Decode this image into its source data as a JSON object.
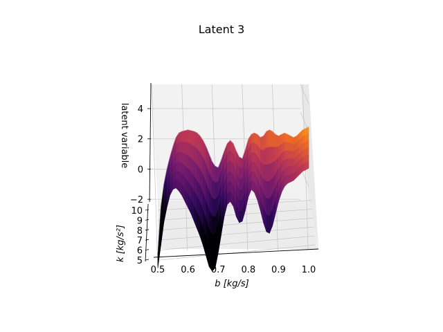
{
  "chart_data": {
    "type": "surface",
    "title": "Latent 3",
    "xlabel": "b [kg/s]",
    "ylabel": "k [kg/s²]",
    "zlabel": "latent variable",
    "xlim": [
      0.5,
      1.0
    ],
    "ylim": [
      5,
      10
    ],
    "zlim": [
      -3,
      5
    ],
    "x_ticks": [
      "0.5",
      "0.6",
      "0.7",
      "0.8",
      "0.9",
      "1.0"
    ],
    "y_ticks": [
      "5",
      "6",
      "7",
      "8",
      "9",
      "10"
    ],
    "z_ticks": [
      "−2",
      "0",
      "2",
      "4"
    ],
    "colormap": "inferno",
    "grid": true,
    "x": [
      0.5,
      0.51,
      0.52,
      0.53,
      0.54,
      0.55,
      0.56,
      0.57,
      0.58,
      0.59,
      0.6,
      0.61,
      0.62,
      0.63,
      0.64,
      0.65,
      0.66,
      0.67,
      0.68,
      0.69,
      0.7,
      0.71,
      0.72,
      0.73,
      0.74,
      0.75,
      0.76,
      0.77,
      0.78,
      0.79,
      0.8,
      0.81,
      0.82,
      0.83,
      0.84,
      0.85,
      0.86,
      0.87,
      0.88,
      0.89,
      0.9,
      0.91,
      0.92,
      0.93,
      0.94,
      0.95,
      0.96,
      0.97,
      0.98,
      0.99,
      1.0
    ],
    "z_max_over_k": [
      -5.5,
      -2.5,
      -1.0,
      0.0,
      0.8,
      1.5,
      2.1,
      2.4,
      2.5,
      2.55,
      2.6,
      2.55,
      2.5,
      2.4,
      2.2,
      1.9,
      1.5,
      1.0,
      0.5,
      0.2,
      0.1,
      0.6,
      1.2,
      1.7,
      1.9,
      1.7,
      1.2,
      0.8,
      0.7,
      1.3,
      2.0,
      2.3,
      2.4,
      2.3,
      2.1,
      2.2,
      2.5,
      2.6,
      2.5,
      2.3,
      2.2,
      2.3,
      2.4,
      2.3,
      2.2,
      2.1,
      2.2,
      2.4,
      2.6,
      2.7,
      2.8
    ],
    "z_min_over_k": [
      -6.0,
      -4.5,
      -3.0,
      -2.0,
      -1.2,
      -0.8,
      -0.7,
      -0.9,
      -1.2,
      -1.6,
      -2.0,
      -2.4,
      -2.9,
      -3.4,
      -3.9,
      -4.5,
      -5.2,
      -5.9,
      -6.2,
      -6.0,
      -5.0,
      -3.8,
      -2.6,
      -1.8,
      -1.6,
      -1.9,
      -2.6,
      -3.0,
      -2.9,
      -2.2,
      -1.3,
      -0.8,
      -1.0,
      -1.5,
      -2.2,
      -3.0,
      -3.6,
      -3.7,
      -3.2,
      -2.4,
      -1.6,
      -1.0,
      -0.6,
      -0.4,
      -0.3,
      -0.2,
      0.0,
      0.2,
      0.4,
      0.5,
      0.6
    ]
  }
}
